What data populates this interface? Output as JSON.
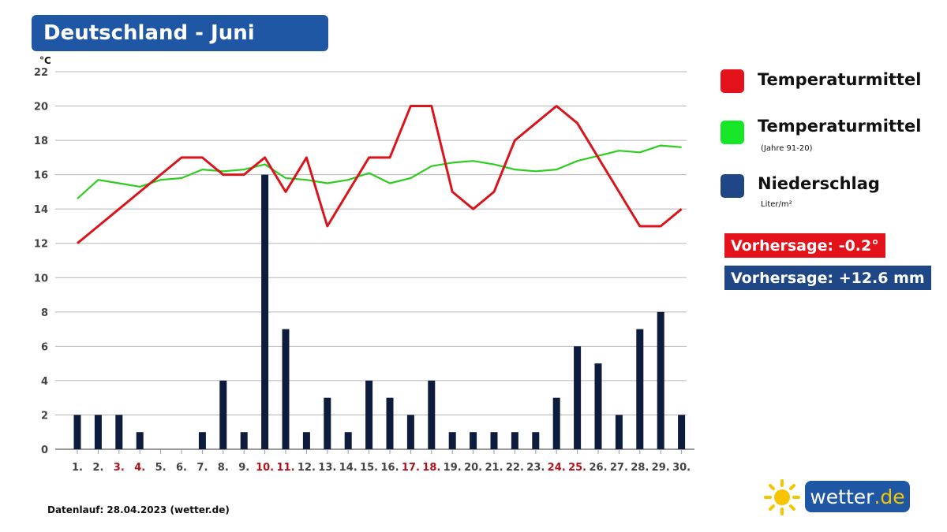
{
  "title": "Deutschland - Juni",
  "chart_data": {
    "type": "bar",
    "categories": [
      "1.",
      "2.",
      "3.",
      "4.",
      "5.",
      "6.",
      "7.",
      "8.",
      "9.",
      "10.",
      "11.",
      "12.",
      "13.",
      "14.",
      "15.",
      "16.",
      "17.",
      "18.",
      "19.",
      "20.",
      "21.",
      "22.",
      "23.",
      "24.",
      "25.",
      "26.",
      "27.",
      "28.",
      "29.",
      "30."
    ],
    "highlighted_days": [
      "3.",
      "4.",
      "10.",
      "11.",
      "17.",
      "18.",
      "24.",
      "25."
    ],
    "y_unit": "°C",
    "ylim": [
      0,
      22
    ],
    "yticks": [
      0,
      2,
      4,
      6,
      8,
      10,
      12,
      14,
      16,
      18,
      20,
      22
    ],
    "grid": true,
    "series": [
      {
        "name": "Niederschlag",
        "type": "bar",
        "color": "#0d1b3d",
        "values": [
          2,
          2,
          2,
          1,
          0,
          0,
          1,
          4,
          1,
          16,
          7,
          1,
          3,
          1,
          4,
          3,
          2,
          4,
          1,
          1,
          1,
          1,
          1,
          3,
          6,
          5,
          2,
          7,
          8,
          2
        ]
      },
      {
        "name": "Temperaturmittel",
        "type": "line",
        "color": "#d9151b",
        "values": [
          12,
          13,
          14,
          15,
          16,
          17,
          17,
          16,
          16,
          17,
          15,
          17,
          13,
          15,
          17,
          17,
          20,
          20,
          15,
          14,
          15,
          18,
          19,
          20,
          19,
          17,
          15,
          13,
          13,
          14
        ]
      },
      {
        "name": "Temperaturmittel",
        "type": "line",
        "color": "#2ecc1f",
        "values": [
          14.6,
          15.7,
          15.5,
          15.3,
          15.7,
          15.8,
          16.3,
          16.2,
          16.3,
          16.6,
          15.8,
          15.7,
          15.5,
          15.7,
          16.1,
          15.5,
          15.8,
          16.5,
          16.7,
          16.8,
          16.6,
          16.3,
          16.2,
          16.3,
          16.8,
          17.1,
          17.4,
          17.3,
          17.7,
          17.6
        ]
      }
    ]
  },
  "legend": [
    {
      "label": "Temperaturmittel",
      "sub": "",
      "color": "#e3121b"
    },
    {
      "label": "Temperaturmittel",
      "sub": "(Jahre 91-20)",
      "color": "#18e628"
    },
    {
      "label": "Niederschlag",
      "sub": "Liter/m²",
      "color": "#1f4785"
    }
  ],
  "forecast_temp": {
    "text": "Vorhersage: -0.2°",
    "color": "#e3121b"
  },
  "forecast_precip": {
    "text": "Vorhersage: +12.6 mm",
    "color": "#1f4785"
  },
  "footer": "Datenlauf: 28.04.2023 (wetter.de)",
  "logo": {
    "name": "wetter",
    "tld": ".de"
  },
  "colors": {
    "title_bg": "#1f57a5",
    "highlight_day": "#b3121b",
    "grid": "#b5b5b5"
  }
}
